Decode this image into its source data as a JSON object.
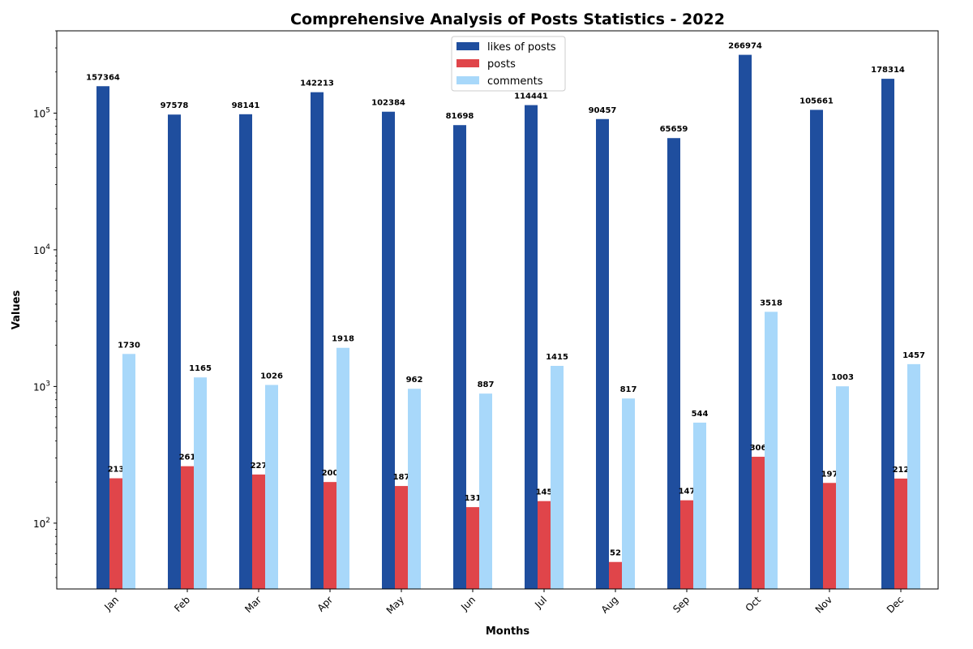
{
  "chart_data": {
    "type": "bar",
    "title": "Comprehensive Analysis of Posts Statistics - 2022",
    "xlabel": "Months",
    "ylabel": "Values",
    "yscale": "log",
    "ylim": [
      33,
      400000
    ],
    "yticks": [
      {
        "value": 100,
        "base": "10",
        "exp": "2"
      },
      {
        "value": 1000,
        "base": "10",
        "exp": "3"
      },
      {
        "value": 10000,
        "base": "10",
        "exp": "4"
      },
      {
        "value": 100000,
        "base": "10",
        "exp": "5"
      }
    ],
    "grid": false,
    "legend_position": "top-center",
    "categories": [
      "Jan",
      "Feb",
      "Mar",
      "Apr",
      "May",
      "Jun",
      "Jul",
      "Aug",
      "Sep",
      "Oct",
      "Nov",
      "Dec"
    ],
    "series": [
      {
        "name": "likes of posts",
        "color": "#1f4e9e",
        "values": [
          157364,
          97578,
          98141,
          142213,
          102384,
          81698,
          114441,
          90457,
          65659,
          266974,
          105661,
          178314
        ]
      },
      {
        "name": "posts",
        "color": "#e0454a",
        "values": [
          213,
          261,
          227,
          200,
          187,
          131,
          145,
          52,
          147,
          306,
          197,
          212
        ]
      },
      {
        "name": "comments",
        "color": "#a8d8fa",
        "values": [
          1730,
          1165,
          1026,
          1918,
          962,
          887,
          1415,
          817,
          544,
          3518,
          1003,
          1457
        ]
      }
    ]
  }
}
